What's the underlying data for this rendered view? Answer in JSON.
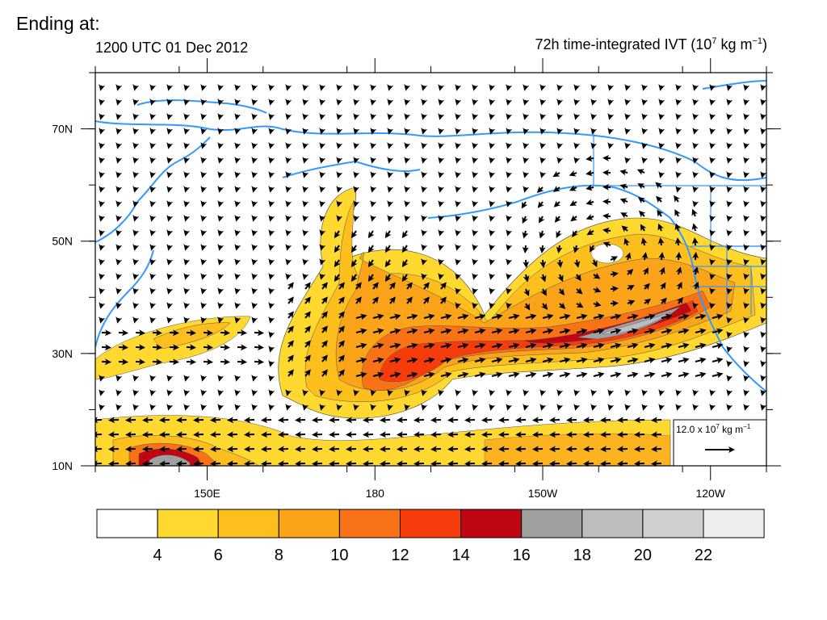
{
  "header": {
    "ending_label": "Ending at:",
    "valid_time": "1200 UTC 01 Dec 2012",
    "title_text": "72h time-integrated IVT (10",
    "title_sup1": "7",
    "title_mid": " kg m",
    "title_sup2": "−1",
    "title_end": ")"
  },
  "chart_data": {
    "type": "heatmap",
    "title": "72h time-integrated IVT (10^7 kg m^-1)",
    "valid_time": "1200 UTC 01 Dec 2012",
    "x_axis": {
      "ticks": [
        "150E",
        "180",
        "150W",
        "120W"
      ],
      "range_deg_east": [
        130,
        250
      ],
      "tick_values": [
        150,
        180,
        210,
        240
      ]
    },
    "y_axis": {
      "ticks": [
        "10N",
        "30N",
        "50N",
        "70N"
      ],
      "range_deg_north": [
        10,
        80
      ],
      "tick_values": [
        10,
        30,
        50,
        70
      ]
    },
    "colorbar": {
      "levels": [
        4,
        6,
        8,
        10,
        12,
        14,
        16,
        18,
        20,
        22
      ],
      "colors": [
        "#ffffff",
        "#ffd92f",
        "#fdbf1e",
        "#fba419",
        "#f97316",
        "#f73c0c",
        "#c00610",
        "#a0a0a0",
        "#bdbdbd",
        "#d0d0d0",
        "#eeeeee"
      ]
    },
    "reference_vector": {
      "magnitude": "12.0 x 10",
      "sup": "7",
      "units": " kg m",
      "units_sup": "−1"
    },
    "land_color": "#3399ff"
  }
}
